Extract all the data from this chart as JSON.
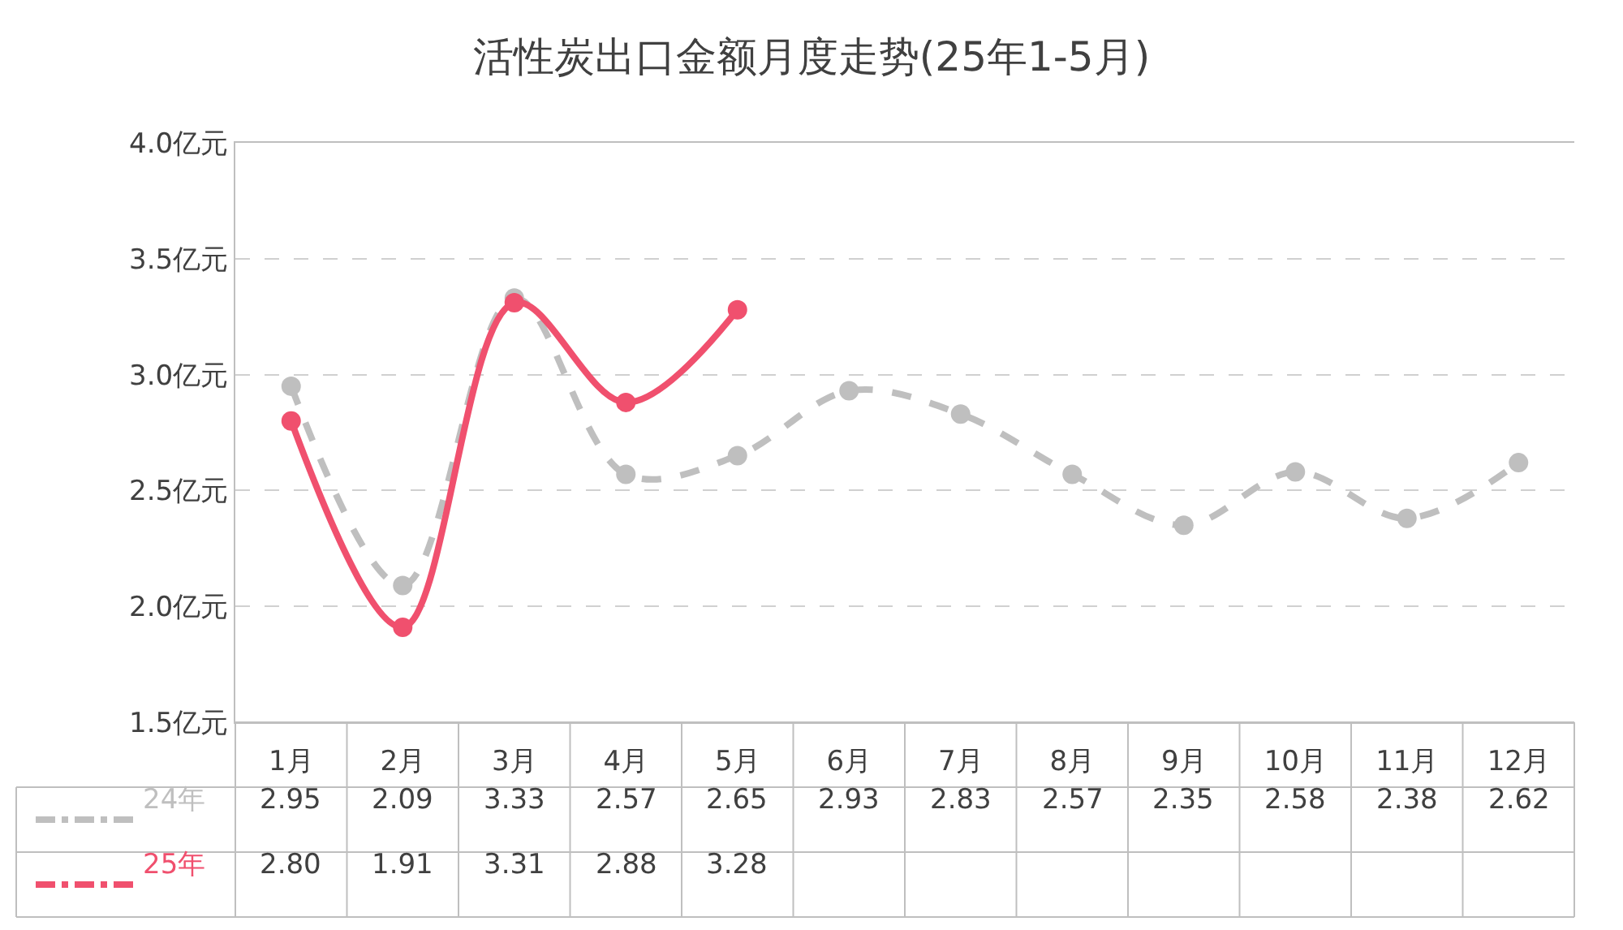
{
  "chart_data": {
    "type": "line",
    "title": "活性炭出口金额月度走势(25年1-5月)",
    "categories": [
      "1月",
      "2月",
      "3月",
      "4月",
      "5月",
      "6月",
      "7月",
      "8月",
      "9月",
      "10月",
      "11月",
      "12月"
    ],
    "series": [
      {
        "name": "24年",
        "color": "#bfbfbf",
        "line_style": "dashed",
        "values": [
          2.95,
          2.09,
          3.33,
          2.57,
          2.65,
          2.93,
          2.83,
          2.57,
          2.35,
          2.58,
          2.38,
          2.62
        ],
        "value_labels": [
          "2.95",
          "2.09",
          "3.33",
          "2.57",
          "2.65",
          "2.93",
          "2.83",
          "2.57",
          "2.35",
          "2.58",
          "2.38",
          "2.62"
        ]
      },
      {
        "name": "25年",
        "color": "#f0506e",
        "line_style": "solid",
        "values": [
          2.8,
          1.91,
          3.31,
          2.88,
          3.28,
          null,
          null,
          null,
          null,
          null,
          null,
          null
        ],
        "value_labels": [
          "2.80",
          "1.91",
          "3.31",
          "2.88",
          "3.28",
          null,
          null,
          null,
          null,
          null,
          null,
          null
        ]
      }
    ],
    "ylim": [
      1.5,
      4.0
    ],
    "yticks": [
      {
        "value": 1.5,
        "label": "1.5亿元"
      },
      {
        "value": 2.0,
        "label": "2.0亿元"
      },
      {
        "value": 2.5,
        "label": "2.5亿元"
      },
      {
        "value": 3.0,
        "label": "3.0亿元"
      },
      {
        "value": 3.5,
        "label": "3.5亿元"
      },
      {
        "value": 4.0,
        "label": "4.0亿元"
      }
    ],
    "grid": "y",
    "marker": "circle",
    "legend": false
  }
}
